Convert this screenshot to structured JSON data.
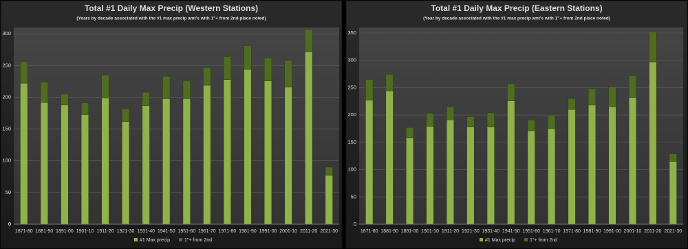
{
  "chart_data": [
    {
      "type": "stacked_bar",
      "title": "Total #1 Daily Max Precip (Western Stations)",
      "subtitle": "(Years by decade associated  with the #1 max precip amt's with 1\"+ from 2nd place noted)",
      "categories": [
        "1871-80",
        "1881-90",
        "1891-00",
        "1901-10",
        "1911-20",
        "1921-30",
        "1931-40",
        "1941-50",
        "1951-60",
        "1961-70",
        "1971-80",
        "1981-90",
        "1991-00",
        "2001-10",
        "2011-20",
        "2021-30"
      ],
      "series": [
        {
          "name": "#1 Max precip",
          "color": "#8fb24c",
          "values": [
            222,
            192,
            188,
            173,
            199,
            162,
            187,
            198,
            198,
            219,
            228,
            244,
            226,
            216,
            272,
            77
          ]
        },
        {
          "name": "1\"+ from 2nd",
          "color": "#4f6c22",
          "values": [
            34,
            32,
            17,
            18,
            36,
            20,
            21,
            35,
            28,
            28,
            36,
            37,
            36,
            42,
            35,
            13
          ]
        }
      ],
      "ylim": [
        0,
        310
      ],
      "yticks": [
        0,
        50,
        100,
        150,
        200,
        250,
        300
      ],
      "grid": true,
      "legend": "bottom"
    },
    {
      "type": "stacked_bar",
      "title": "Total #1 Daily Max Precip (Eastern Stations)",
      "subtitle": "(Year by decade associated  with the #1 max precip amt's with 1\"+ from 2nd place noted)",
      "categories": [
        "1871-80",
        "1881-90",
        "1891-00",
        "1901-10",
        "1911-20",
        "1921-30",
        "1931-40",
        "1941-50",
        "1951-60",
        "1961-70",
        "1971-80",
        "1981-90",
        "1991-00",
        "2001-10",
        "2011-20",
        "2021-30"
      ],
      "series": [
        {
          "name": "#1 Max precip",
          "color": "#8fb24c",
          "values": [
            227,
            244,
            158,
            179,
            191,
            178,
            178,
            226,
            171,
            175,
            210,
            218,
            215,
            232,
            297,
            115
          ]
        },
        {
          "name": "1\"+ from 2nd",
          "color": "#4f6c22",
          "values": [
            38,
            30,
            19,
            24,
            24,
            19,
            26,
            31,
            20,
            24,
            20,
            30,
            37,
            40,
            55,
            14
          ]
        }
      ],
      "ylim": [
        0,
        360
      ],
      "yticks": [
        0,
        50,
        100,
        150,
        200,
        250,
        300,
        350
      ],
      "grid": true,
      "legend": "bottom"
    }
  ]
}
